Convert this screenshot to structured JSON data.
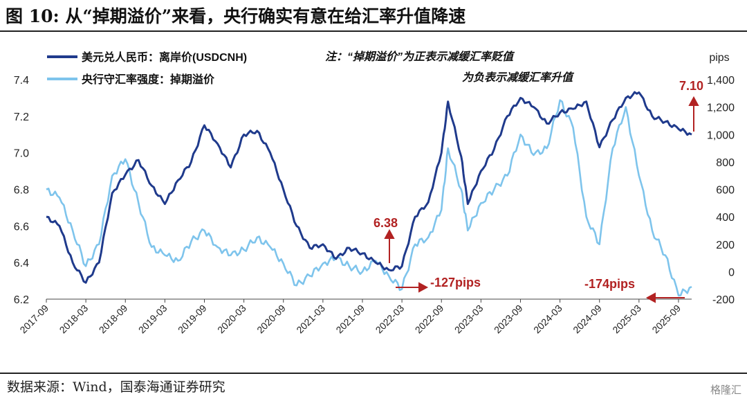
{
  "header": {
    "title": "图 10:   从“掉期溢价”来看，央行确实有意在给汇率升值降速"
  },
  "footer": {
    "source": "数据来源：Wind，国泰海通证券研究",
    "logo": "格隆汇"
  },
  "colors": {
    "cnh": "#1f3a8c",
    "swap": "#7ec4ec",
    "annotation": "#b22222"
  },
  "chart_data": {
    "type": "line",
    "title": "",
    "xlabel": "",
    "y_left": {
      "ylim": [
        6.2,
        7.4
      ],
      "ticks": [
        "6.2",
        "6.4",
        "6.6",
        "6.8",
        "7.0",
        "7.2",
        "7.4"
      ]
    },
    "y_right": {
      "label": "pips",
      "ylim": [
        -200,
        1400
      ],
      "ticks": [
        "-200",
        "0",
        "200",
        "400",
        "600",
        "800",
        "1,000",
        "1,200",
        "1,400"
      ]
    },
    "x_ticks": [
      "2017-09",
      "2018-03",
      "2018-09",
      "2019-03",
      "2019-09",
      "2020-03",
      "2020-09",
      "2021-03",
      "2021-09",
      "2022-03",
      "2022-09",
      "2023-03",
      "2023-09",
      "2024-03",
      "2024-09",
      "2025-03",
      "2025-09"
    ],
    "grid": false,
    "legend_position": "top-left",
    "note": [
      "注：“掉期溢价”为正表示减缓汇率贬值",
      "为负表示减缓汇率升值"
    ],
    "annotations": [
      "6.38",
      "-127pips",
      "7.10",
      "-174pips"
    ],
    "series": [
      {
        "name": "美元兑人民币：离岸价(USDCNH)",
        "axis": "left",
        "x": [
          "2017-09",
          "2017-11",
          "2018-01",
          "2018-03",
          "2018-05",
          "2018-07",
          "2018-09",
          "2018-11",
          "2019-01",
          "2019-03",
          "2019-05",
          "2019-07",
          "2019-09",
          "2019-11",
          "2020-01",
          "2020-03",
          "2020-05",
          "2020-07",
          "2020-09",
          "2020-11",
          "2021-01",
          "2021-03",
          "2021-05",
          "2021-07",
          "2021-09",
          "2021-11",
          "2022-01",
          "2022-03",
          "2022-05",
          "2022-07",
          "2022-09",
          "2022-10",
          "2022-12",
          "2023-01",
          "2023-03",
          "2023-05",
          "2023-07",
          "2023-09",
          "2023-11",
          "2024-01",
          "2024-03",
          "2024-05",
          "2024-07",
          "2024-09",
          "2024-11",
          "2025-01",
          "2025-03",
          "2025-05",
          "2025-07",
          "2025-09",
          "2025-11"
        ],
        "values": [
          6.65,
          6.6,
          6.4,
          6.29,
          6.4,
          6.78,
          6.88,
          6.96,
          6.82,
          6.72,
          6.85,
          6.95,
          7.15,
          7.05,
          6.92,
          7.1,
          7.12,
          7.0,
          6.8,
          6.6,
          6.48,
          6.5,
          6.42,
          6.48,
          6.45,
          6.4,
          6.36,
          6.38,
          6.65,
          6.73,
          7.0,
          7.28,
          6.98,
          6.72,
          6.9,
          7.02,
          7.2,
          7.3,
          7.25,
          7.16,
          7.22,
          7.24,
          7.28,
          7.03,
          7.18,
          7.3,
          7.33,
          7.2,
          7.17,
          7.13,
          7.1
        ]
      },
      {
        "name": "央行守汇率强度：掉期溢价",
        "axis": "right",
        "x": [
          "2017-09",
          "2017-11",
          "2018-01",
          "2018-03",
          "2018-05",
          "2018-07",
          "2018-09",
          "2018-11",
          "2019-01",
          "2019-03",
          "2019-05",
          "2019-07",
          "2019-09",
          "2019-11",
          "2020-01",
          "2020-03",
          "2020-05",
          "2020-07",
          "2020-09",
          "2020-11",
          "2021-01",
          "2021-03",
          "2021-05",
          "2021-07",
          "2021-09",
          "2021-11",
          "2022-01",
          "2022-03",
          "2022-05",
          "2022-07",
          "2022-09",
          "2022-10",
          "2022-12",
          "2023-01",
          "2023-03",
          "2023-05",
          "2023-07",
          "2023-09",
          "2023-11",
          "2024-01",
          "2024-03",
          "2024-05",
          "2024-07",
          "2024-09",
          "2024-11",
          "2025-01",
          "2025-03",
          "2025-05",
          "2025-07",
          "2025-09",
          "2025-11"
        ],
        "values": [
          600,
          540,
          300,
          40,
          200,
          700,
          820,
          500,
          180,
          120,
          80,
          220,
          300,
          180,
          120,
          160,
          250,
          180,
          60,
          -100,
          -30,
          60,
          100,
          40,
          0,
          80,
          -30,
          -127,
          200,
          250,
          450,
          900,
          600,
          300,
          500,
          600,
          700,
          1000,
          850,
          900,
          1250,
          1050,
          400,
          200,
          900,
          1200,
          700,
          300,
          120,
          -174,
          -110
        ]
      }
    ]
  }
}
